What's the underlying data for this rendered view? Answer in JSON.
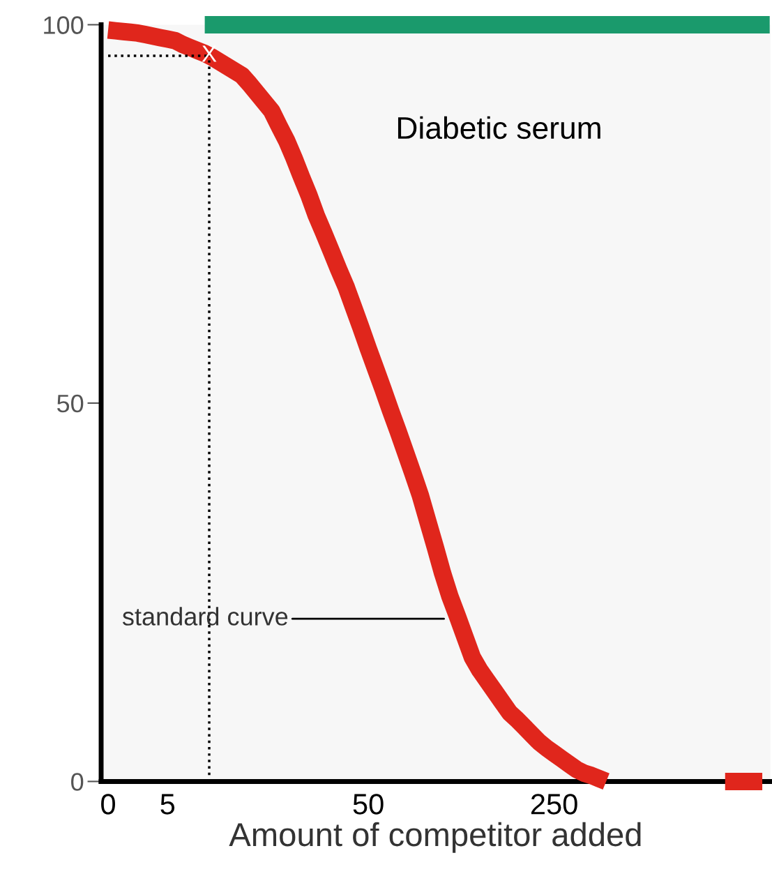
{
  "chart_data": {
    "type": "line",
    "xlabel": "Amount of competitor added",
    "categories": [
      "0",
      null,
      null,
      null,
      null,
      null,
      null,
      null,
      "5",
      null,
      null,
      null,
      null,
      null,
      null,
      null,
      null,
      null,
      null,
      null,
      null,
      null,
      null,
      null,
      null,
      null,
      null,
      null,
      null,
      null,
      null,
      null,
      null,
      null,
      null,
      "50",
      null,
      null,
      null,
      null,
      null,
      null,
      null,
      null,
      null,
      null,
      null,
      null,
      null,
      null,
      null,
      null,
      null,
      null,
      null,
      null,
      null,
      null,
      null,
      null,
      "250",
      null,
      null,
      null,
      null,
      null,
      null,
      null,
      null,
      null,
      null,
      null,
      null,
      null,
      null,
      null,
      null,
      null,
      null,
      null,
      null,
      null,
      null,
      null,
      null,
      null,
      null,
      null,
      null,
      null
    ],
    "ylim": [
      0,
      100
    ],
    "yticks": [
      0,
      50,
      100
    ],
    "grid": false,
    "legend": false,
    "marker": "none",
    "series": [
      {
        "color": "#e0261c",
        "values": [
          99.3,
          99.2,
          99.1,
          99.0,
          98.9,
          98.7,
          98.5,
          98.3,
          98.1,
          97.9,
          97.4,
          97.0,
          96.6,
          96.2,
          95.7,
          95.1,
          94.5,
          93.9,
          93.3,
          92.2,
          91.0,
          89.8,
          88.6,
          86.6,
          84.7,
          82.4,
          79.9,
          77.5,
          74.8,
          72.5,
          70.1,
          67.7,
          65.4,
          62.7,
          60.0,
          57.2,
          54.5,
          51.8,
          49.0,
          46.3,
          43.5,
          40.7,
          37.8,
          34.4,
          31.0,
          27.5,
          24.4,
          21.8,
          19.1,
          16.4,
          14.7,
          13.3,
          11.9,
          10.5,
          9.1,
          8.2,
          7.2,
          6.2,
          5.2,
          4.4,
          3.7,
          3.0,
          2.3,
          1.6,
          1.1,
          0.8,
          0.4,
          0.0,
          null,
          null,
          null,
          null,
          null,
          null,
          null,
          null,
          null,
          null,
          null,
          null,
          null,
          null,
          null,
          0,
          0,
          0,
          0,
          0,
          0,
          null
        ]
      },
      {
        "color": "#1a9a6c",
        "values": [
          null,
          null,
          null,
          null,
          null,
          null,
          null,
          null,
          null,
          null,
          null,
          null,
          null,
          100,
          100,
          100,
          100,
          100,
          100,
          100,
          100,
          100,
          100,
          100,
          100,
          100,
          100,
          100,
          100,
          100,
          100,
          100,
          100,
          100,
          100,
          100,
          100,
          100,
          100,
          100,
          100,
          100,
          100,
          100,
          100,
          100,
          100,
          100,
          100,
          100,
          100,
          100,
          100,
          100,
          100,
          100,
          100,
          100,
          100,
          100,
          100,
          100,
          100,
          100,
          100,
          100,
          100,
          100,
          100,
          100,
          100,
          100,
          100,
          100,
          100,
          100,
          100,
          100,
          100,
          100,
          100,
          100,
          100,
          100,
          100,
          100,
          100,
          100,
          100,
          100
        ]
      }
    ],
    "ref_lines": [
      {
        "axis": "y",
        "value": 95.9,
        "color": "#000000",
        "line_style": "dotted"
      }
    ],
    "annotations": [
      "X",
      "Diabetic serum",
      "standard curve"
    ]
  }
}
